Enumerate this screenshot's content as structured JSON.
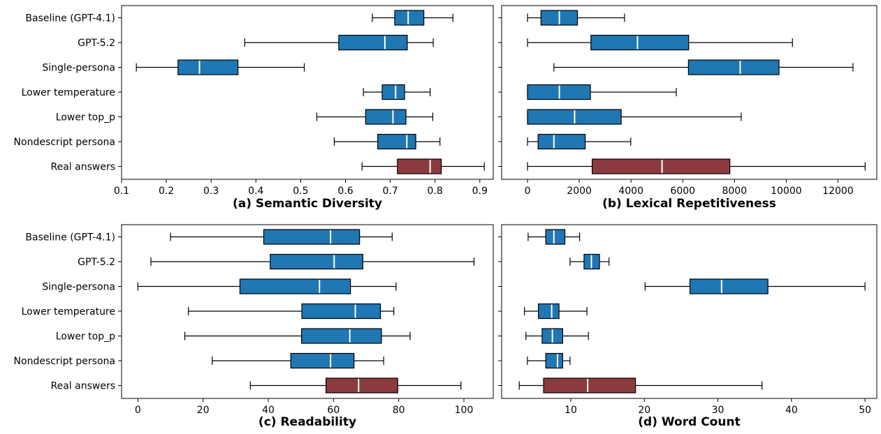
{
  "categories": [
    "Baseline (GPT-4.1)",
    "GPT-5.2",
    "Single-persona",
    "Lower temperature",
    "Lower top_p",
    "Nondescript persona",
    "Real answers"
  ],
  "colors": {
    "model": "#1f77b4",
    "real": "#8b3a3e",
    "median": "#ffffff",
    "frame": "#000000"
  },
  "chart_data": [
    {
      "type": "boxplot",
      "orientation": "horizontal",
      "xlabel": "(a) Semantic Diversity",
      "xlim": [
        0.1,
        0.93
      ],
      "xticks": [
        "0.1",
        "0.2",
        "0.3",
        "0.4",
        "0.5",
        "0.6",
        "0.7",
        "0.8",
        "0.9"
      ],
      "boxes": [
        {
          "min": 0.66,
          "q1": 0.71,
          "median": 0.74,
          "q3": 0.775,
          "max": 0.84
        },
        {
          "min": 0.375,
          "q1": 0.585,
          "median": 0.688,
          "q3": 0.738,
          "max": 0.796
        },
        {
          "min": 0.133,
          "q1": 0.226,
          "median": 0.274,
          "q3": 0.36,
          "max": 0.508
        },
        {
          "min": 0.64,
          "q1": 0.682,
          "median": 0.712,
          "q3": 0.732,
          "max": 0.789
        },
        {
          "min": 0.536,
          "q1": 0.645,
          "median": 0.706,
          "q3": 0.735,
          "max": 0.795
        },
        {
          "min": 0.575,
          "q1": 0.672,
          "median": 0.737,
          "q3": 0.757,
          "max": 0.811
        },
        {
          "min": 0.637,
          "q1": 0.716,
          "median": 0.789,
          "q3": 0.814,
          "max": 0.91
        }
      ]
    },
    {
      "type": "boxplot",
      "orientation": "horizontal",
      "xlabel": "(b) Lexical Repetitiveness",
      "xlim": [
        -1000,
        13500
      ],
      "xticks": [
        "0",
        "2000",
        "4000",
        "6000",
        "8000",
        "10000",
        "12000"
      ],
      "boxes": [
        {
          "min": 0,
          "q1": 520,
          "median": 1230,
          "q3": 1930,
          "max": 3750
        },
        {
          "min": 0,
          "q1": 2450,
          "median": 4250,
          "q3": 6230,
          "max": 10240
        },
        {
          "min": 1020,
          "q1": 6220,
          "median": 8220,
          "q3": 9720,
          "max": 12580
        },
        {
          "min": 0,
          "q1": 0,
          "median": 1230,
          "q3": 2430,
          "max": 5750
        },
        {
          "min": 0,
          "q1": 0,
          "median": 1820,
          "q3": 3620,
          "max": 8260
        },
        {
          "min": 0,
          "q1": 410,
          "median": 1020,
          "q3": 2230,
          "max": 3990
        },
        {
          "min": 0,
          "q1": 2500,
          "median": 5200,
          "q3": 7820,
          "max": 13050
        }
      ]
    },
    {
      "type": "boxplot",
      "orientation": "horizontal",
      "xlabel": "(c) Readability",
      "xlim": [
        -5,
        109
      ],
      "xticks": [
        "0",
        "20",
        "40",
        "60",
        "80",
        "100"
      ],
      "boxes": [
        {
          "min": 10,
          "q1": 38.6,
          "median": 59.1,
          "q3": 68.0,
          "max": 78.0
        },
        {
          "min": 4,
          "q1": 40.6,
          "median": 60.2,
          "q3": 69.0,
          "max": 103.1
        },
        {
          "min": 0,
          "q1": 31.3,
          "median": 55.7,
          "q3": 65.2,
          "max": 79.2
        },
        {
          "min": 15.5,
          "q1": 50.3,
          "median": 66.7,
          "q3": 74.4,
          "max": 78.5
        },
        {
          "min": 14.4,
          "q1": 50.2,
          "median": 65.0,
          "q3": 74.7,
          "max": 83.5
        },
        {
          "min": 22.8,
          "q1": 46.9,
          "median": 59.1,
          "q3": 66.3,
          "max": 75.4
        },
        {
          "min": 34.5,
          "q1": 57.7,
          "median": 67.7,
          "q3": 79.7,
          "max": 99.1
        }
      ]
    },
    {
      "type": "boxplot",
      "orientation": "horizontal",
      "xlabel": "(d) Word Count",
      "xlim": [
        0.6,
        51.6
      ],
      "xticks": [
        "10",
        "20",
        "30",
        "40",
        "50"
      ],
      "boxes": [
        {
          "min": 4.2,
          "q1": 6.6,
          "median": 7.7,
          "q3": 9.2,
          "max": 11.2
        },
        {
          "min": 9.9,
          "q1": 11.8,
          "median": 12.8,
          "q3": 13.9,
          "max": 15.2
        },
        {
          "min": 20.1,
          "q1": 26.2,
          "median": 30.5,
          "q3": 36.8,
          "max": 50.0
        },
        {
          "min": 3.7,
          "q1": 5.6,
          "median": 7.4,
          "q3": 8.4,
          "max": 12.2
        },
        {
          "min": 3.9,
          "q1": 6.1,
          "median": 7.5,
          "q3": 8.9,
          "max": 12.4
        },
        {
          "min": 4.1,
          "q1": 6.6,
          "median": 8.2,
          "q3": 8.9,
          "max": 9.9
        },
        {
          "min": 3.0,
          "q1": 6.3,
          "median": 12.3,
          "q3": 18.8,
          "max": 36.0
        }
      ]
    }
  ]
}
